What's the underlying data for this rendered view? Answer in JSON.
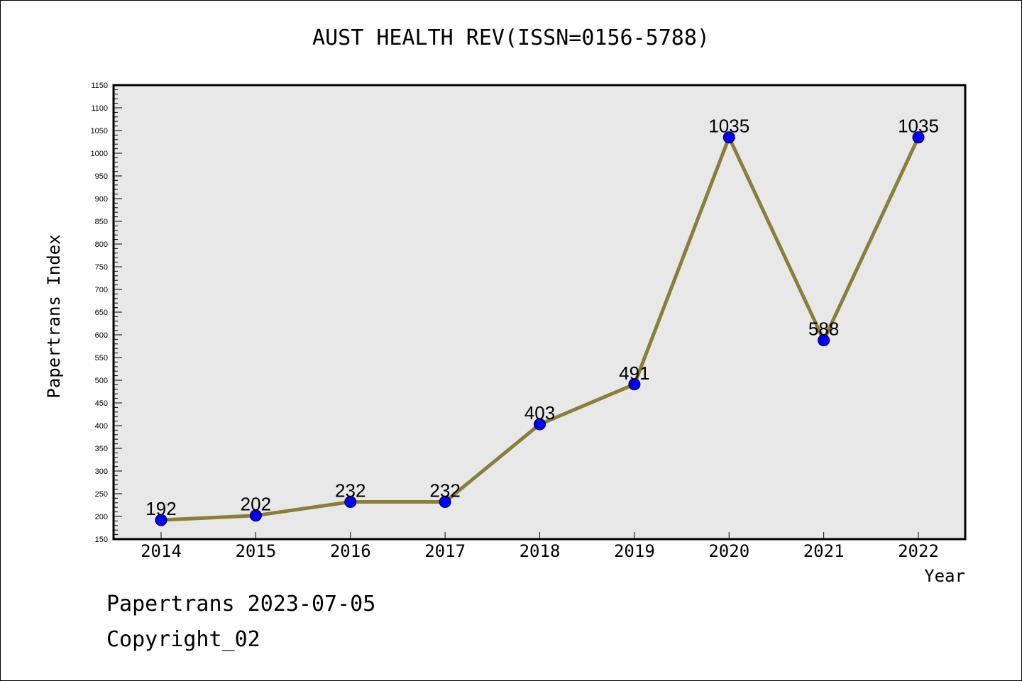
{
  "chart_data": {
    "type": "line",
    "title": "AUST HEALTH REV(ISSN=0156-5788)",
    "xlabel": "Year",
    "ylabel": "Papertrans Index",
    "categories": [
      "2014",
      "2015",
      "2016",
      "2017",
      "2018",
      "2019",
      "2020",
      "2021",
      "2022"
    ],
    "series": [
      {
        "values": [
          192,
          202,
          232,
          232,
          403,
          491,
          1035,
          588,
          1035
        ]
      }
    ],
    "ylim": [
      150,
      1150
    ],
    "ytick_step": 50,
    "grid": false,
    "legend": "none",
    "colors": {
      "line": "#8b7d3a",
      "marker": "#0000ff",
      "plot_bg": "#e8e8e8"
    }
  },
  "footer": {
    "date_text": "Papertrans 2023-07-05",
    "copyright_text": "Copyright_02"
  }
}
